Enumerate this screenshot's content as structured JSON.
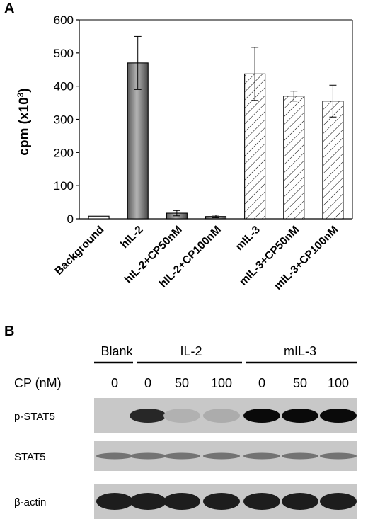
{
  "panel_a": {
    "letter": "A"
  },
  "panel_b": {
    "letter": "B",
    "groups": [
      "Blank",
      "IL-2",
      "mIL-3"
    ],
    "cp_label": "CP (nM)",
    "cp_values": [
      "0",
      "0",
      "50",
      "100",
      "0",
      "50",
      "100"
    ],
    "rows": [
      {
        "label": "p-STAT5",
        "intensity": [
          0.0,
          0.85,
          0.12,
          0.15,
          1.0,
          1.0,
          1.0
        ]
      },
      {
        "label": "STAT5",
        "intensity": [
          0.45,
          0.45,
          0.45,
          0.45,
          0.45,
          0.45,
          0.45
        ]
      },
      {
        "label": "β-actin",
        "intensity": [
          0.9,
          0.9,
          0.9,
          0.9,
          0.9,
          0.9,
          0.9
        ]
      }
    ]
  },
  "colors": {
    "ink": "#000000",
    "gray_bar": "#8c8c8c",
    "blot_bg": "#c8c8c8"
  },
  "chart_data": {
    "type": "bar",
    "title": "",
    "ylabel": "cpm (x10",
    "ylabel_sup": "3",
    "ylabel_close": ")",
    "xlabel": "",
    "ylim": [
      0,
      600
    ],
    "yticks": [
      0,
      100,
      200,
      300,
      400,
      500,
      600
    ],
    "grid": false,
    "categories": [
      "Background",
      "hIL-2",
      "hIL-2+CP50nM",
      "hIL-2+CP100nM",
      "mIL-3",
      "mIL-3+CP50nM",
      "mIL-3+CP100nM"
    ],
    "values": [
      8,
      470,
      17,
      7,
      437,
      370,
      355
    ],
    "errors": [
      0,
      80,
      8,
      4,
      80,
      15,
      48
    ],
    "fills": [
      "white",
      "gray",
      "gray",
      "gray",
      "hatched",
      "hatched",
      "hatched"
    ]
  }
}
